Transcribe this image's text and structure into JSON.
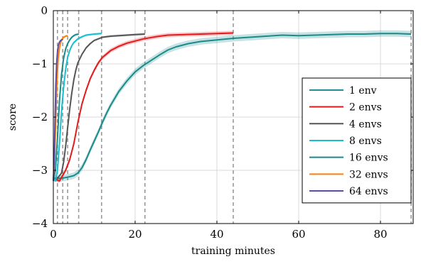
{
  "chart_data": {
    "type": "line",
    "xlabel": "training minutes",
    "ylabel": "score",
    "xlim": [
      0,
      88
    ],
    "ylim": [
      -4,
      0
    ],
    "xticks": [
      0,
      20,
      40,
      60,
      80
    ],
    "yticks": [
      0,
      -1,
      -2,
      -3,
      -4
    ],
    "ytick_labels": [
      "0",
      "−1",
      "−2",
      "−3",
      "−4"
    ],
    "grid": true,
    "legend_position": "bottom-right",
    "vlines": [
      1.0,
      2.3,
      3.5,
      6.2,
      11.8,
      22.4,
      44.0,
      87.5
    ],
    "series": [
      {
        "name": "1 env",
        "color": "#1a8a8a",
        "band": 0.06,
        "x": [
          0,
          2,
          4,
          5,
          6,
          7,
          8,
          9,
          10,
          11,
          12,
          13,
          14,
          16,
          18,
          20,
          22,
          24,
          26,
          28,
          30,
          33,
          36,
          40,
          44,
          48,
          52,
          56,
          60,
          64,
          68,
          72,
          76,
          80,
          84,
          87.5
        ],
        "y": [
          -3.15,
          -3.15,
          -3.12,
          -3.1,
          -3.05,
          -2.95,
          -2.8,
          -2.62,
          -2.45,
          -2.28,
          -2.1,
          -1.93,
          -1.78,
          -1.52,
          -1.32,
          -1.15,
          -1.03,
          -0.93,
          -0.83,
          -0.74,
          -0.68,
          -0.62,
          -0.58,
          -0.55,
          -0.52,
          -0.5,
          -0.48,
          -0.46,
          -0.47,
          -0.46,
          -0.45,
          -0.44,
          -0.44,
          -0.43,
          -0.43,
          -0.44
        ]
      },
      {
        "name": "2 envs",
        "color": "#e31a1c",
        "band": 0.04,
        "x": [
          0,
          1.5,
          3,
          4,
          5,
          6,
          7,
          8,
          9,
          10,
          11,
          12,
          14,
          16,
          18,
          20,
          22,
          25,
          28,
          32,
          36,
          40,
          44
        ],
        "y": [
          -3.15,
          -3.2,
          -3.0,
          -2.8,
          -2.5,
          -2.1,
          -1.75,
          -1.5,
          -1.28,
          -1.12,
          -0.98,
          -0.88,
          -0.75,
          -0.67,
          -0.61,
          -0.57,
          -0.53,
          -0.49,
          -0.46,
          -0.45,
          -0.44,
          -0.43,
          -0.42
        ]
      },
      {
        "name": "4 envs",
        "color": "#555555",
        "band": 0.02,
        "x": [
          0,
          1,
          2,
          2.5,
          3,
          3.5,
          4,
          4.5,
          5,
          5.5,
          6,
          7,
          8,
          9,
          10,
          12,
          14,
          16,
          18,
          20,
          22.4
        ],
        "y": [
          -3.15,
          -3.15,
          -3.05,
          -2.85,
          -2.55,
          -2.2,
          -1.85,
          -1.55,
          -1.3,
          -1.12,
          -0.98,
          -0.82,
          -0.7,
          -0.62,
          -0.56,
          -0.5,
          -0.48,
          -0.47,
          -0.46,
          -0.45,
          -0.44
        ]
      },
      {
        "name": "8 envs",
        "color": "#17becf",
        "band": 0.02,
        "x": [
          0,
          0.5,
          1,
          1.5,
          2,
          2.5,
          3,
          3.5,
          4,
          4.5,
          5,
          6,
          7,
          8,
          9,
          10,
          11.8
        ],
        "y": [
          -3.15,
          -3.2,
          -3.0,
          -2.5,
          -1.9,
          -1.45,
          -1.1,
          -0.88,
          -0.75,
          -0.66,
          -0.6,
          -0.53,
          -0.49,
          -0.46,
          -0.45,
          -0.44,
          -0.43
        ]
      },
      {
        "name": "16 envs",
        "color": "#1a8a8a",
        "band": 0.02,
        "x": [
          0,
          0.5,
          1,
          1.5,
          2,
          2.5,
          3,
          3.5,
          4,
          4.5,
          5,
          5.5,
          6.2
        ],
        "y": [
          -3.2,
          -3.0,
          -2.4,
          -1.7,
          -1.2,
          -0.9,
          -0.72,
          -0.62,
          -0.55,
          -0.5,
          -0.47,
          -0.45,
          -0.44
        ]
      },
      {
        "name": "32 envs",
        "color": "#ff7f0e",
        "band": 0.02,
        "x": [
          0,
          0.3,
          0.6,
          0.9,
          1.2,
          1.5,
          1.8,
          2.1,
          2.5,
          3.0,
          3.5
        ],
        "y": [
          -3.2,
          -2.8,
          -2.0,
          -1.3,
          -0.9,
          -0.7,
          -0.6,
          -0.54,
          -0.5,
          -0.48,
          -0.47
        ]
      },
      {
        "name": "64 envs",
        "color": "#5b4ea3",
        "band": 0.02,
        "x": [
          0,
          0.2,
          0.4,
          0.6,
          0.8,
          1.0,
          1.2,
          1.5,
          1.8,
          2.3
        ],
        "y": [
          -3.2,
          -2.8,
          -2.1,
          -1.4,
          -1.0,
          -0.78,
          -0.66,
          -0.59,
          -0.56,
          -0.54
        ]
      }
    ]
  }
}
